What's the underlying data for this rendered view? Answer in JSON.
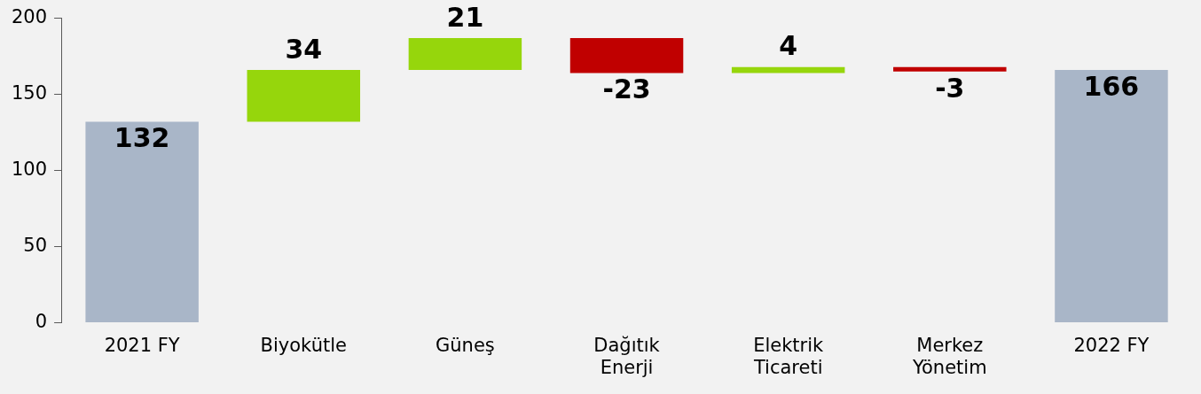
{
  "chart_data": {
    "type": "bar",
    "categories": [
      "2021 FY",
      "Biyokütle",
      "Güneş",
      "Dağıtık Enerji",
      "Elektrik Ticareti",
      "Merkez Yönetim",
      "2022 FY"
    ],
    "values": [
      132,
      34,
      21,
      -23,
      4,
      -3,
      166
    ],
    "base": [
      0,
      132,
      166,
      187,
      164,
      168,
      0
    ],
    "colors": [
      "#a9b6c8",
      "#96d60c",
      "#96d60c",
      "#c00000",
      "#96d60c",
      "#c00000",
      "#a9b6c8"
    ],
    "ylim": [
      0,
      200
    ],
    "yticks": [
      0,
      50,
      100,
      150,
      200
    ],
    "grid": false,
    "legend": false,
    "data_labels": true
  }
}
